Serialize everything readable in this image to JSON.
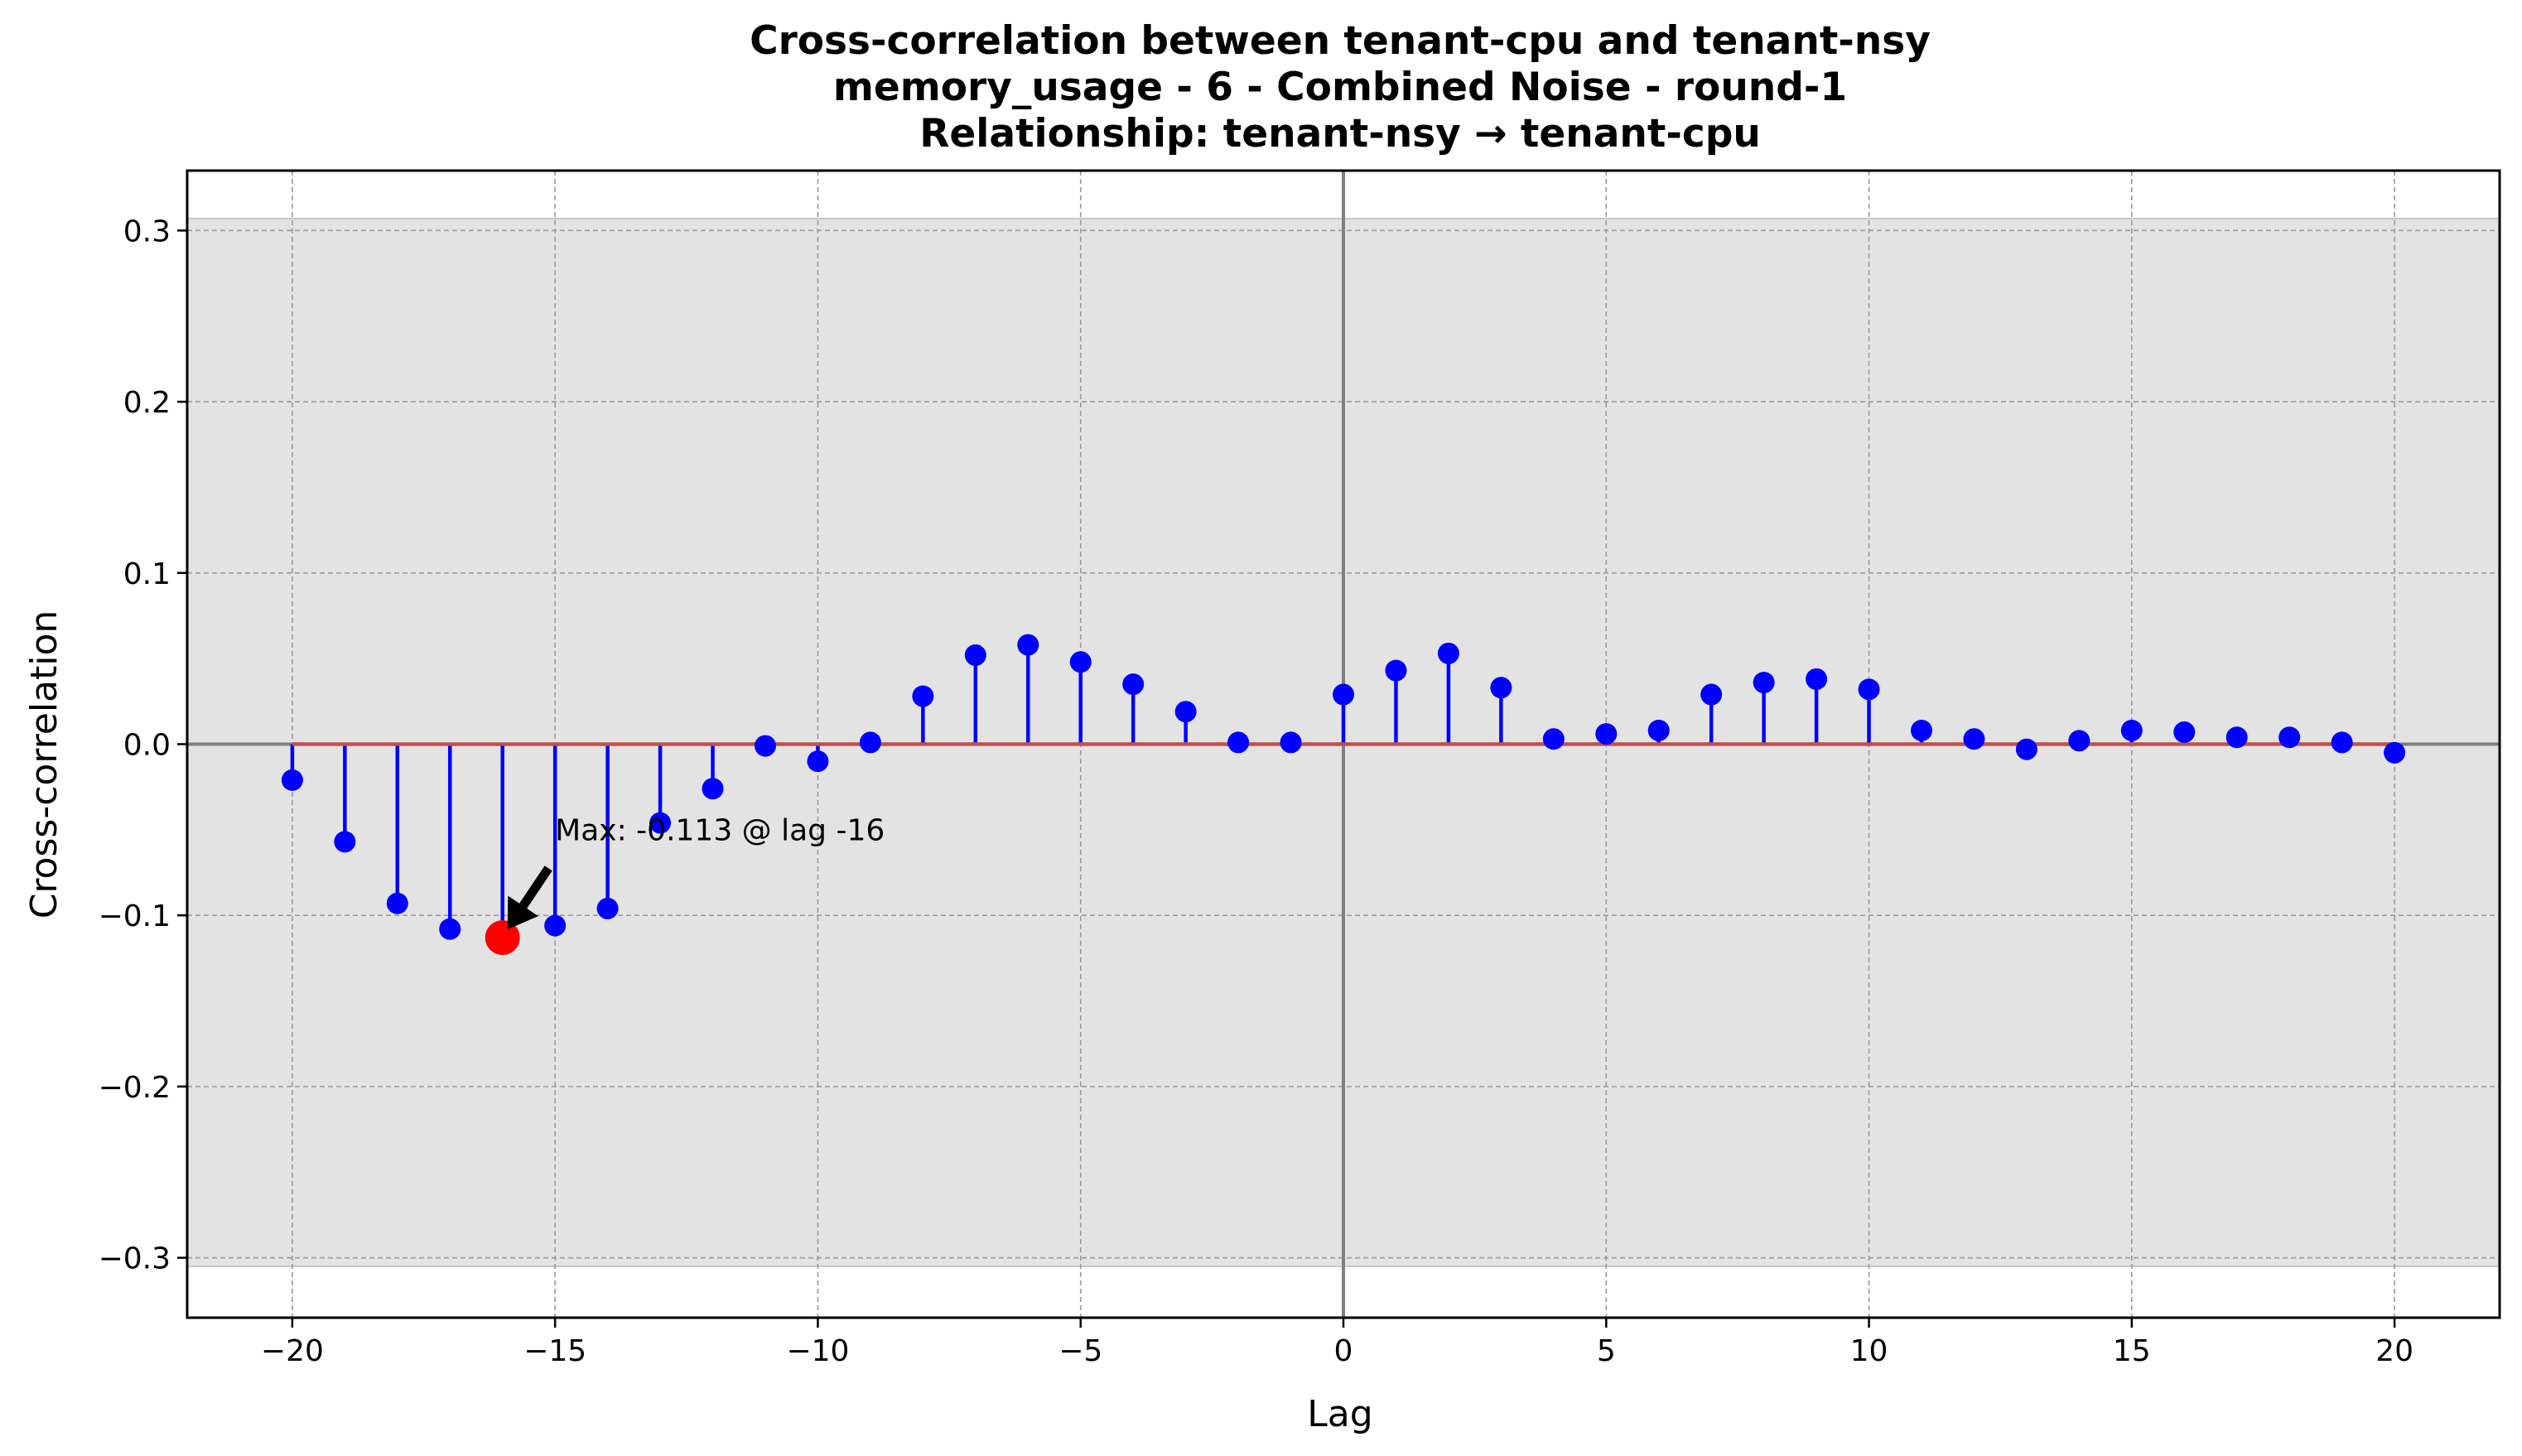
{
  "chart_data": {
    "type": "stem",
    "title_lines": [
      "Cross-correlation between tenant-cpu and tenant-nsy",
      "memory_usage - 6 - Combined Noise - round-1",
      "Relationship: tenant-nsy → tenant-cpu"
    ],
    "xlabel": "Lag",
    "ylabel": "Cross-correlation",
    "xlim": [
      -22,
      22
    ],
    "ylim": [
      -0.335,
      0.335
    ],
    "x_ticks": [
      -20,
      -15,
      -10,
      -5,
      0,
      5,
      10,
      15,
      20
    ],
    "x_tick_labels": [
      "−20",
      "−15",
      "−10",
      "−5",
      "0",
      "5",
      "10",
      "15",
      "20"
    ],
    "y_ticks": [
      0.3,
      0.2,
      0.1,
      0.0,
      -0.1,
      -0.2,
      -0.3
    ],
    "y_tick_labels": [
      "0.3",
      "0.2",
      "0.1",
      "0.0",
      "−0.1",
      "−0.2",
      "−0.3"
    ],
    "grid": true,
    "confidence_band": [
      -0.305,
      0.307
    ],
    "x": [
      -20,
      -19,
      -18,
      -17,
      -16,
      -15,
      -14,
      -13,
      -12,
      -11,
      -10,
      -9,
      -8,
      -7,
      -6,
      -5,
      -4,
      -3,
      -2,
      -1,
      0,
      1,
      2,
      3,
      4,
      5,
      6,
      7,
      8,
      9,
      10,
      11,
      12,
      13,
      14,
      15,
      16,
      17,
      18,
      19,
      20
    ],
    "values": [
      -0.021,
      -0.057,
      -0.093,
      -0.108,
      -0.113,
      -0.106,
      -0.096,
      -0.046,
      -0.026,
      -0.001,
      -0.01,
      0.001,
      0.028,
      0.052,
      0.058,
      0.048,
      0.035,
      0.019,
      0.001,
      0.001,
      0.029,
      0.043,
      0.053,
      0.033,
      0.003,
      0.006,
      0.008,
      0.029,
      0.036,
      0.038,
      0.032,
      0.008,
      0.003,
      -0.003,
      0.002,
      0.008,
      0.007,
      0.004,
      0.004,
      0.001,
      -0.005
    ],
    "max_point": {
      "lag": -16,
      "value": -0.113
    },
    "annotation": "Max: -0.113 @ lag -16",
    "colors": {
      "stems": "#0000ff",
      "markers": "#0000ff",
      "max_marker": "#ff0000",
      "baseline": "#c0504d",
      "zero_lines": "#808080",
      "band": "#e3e3e3",
      "grid": "#9a9a9a"
    }
  }
}
